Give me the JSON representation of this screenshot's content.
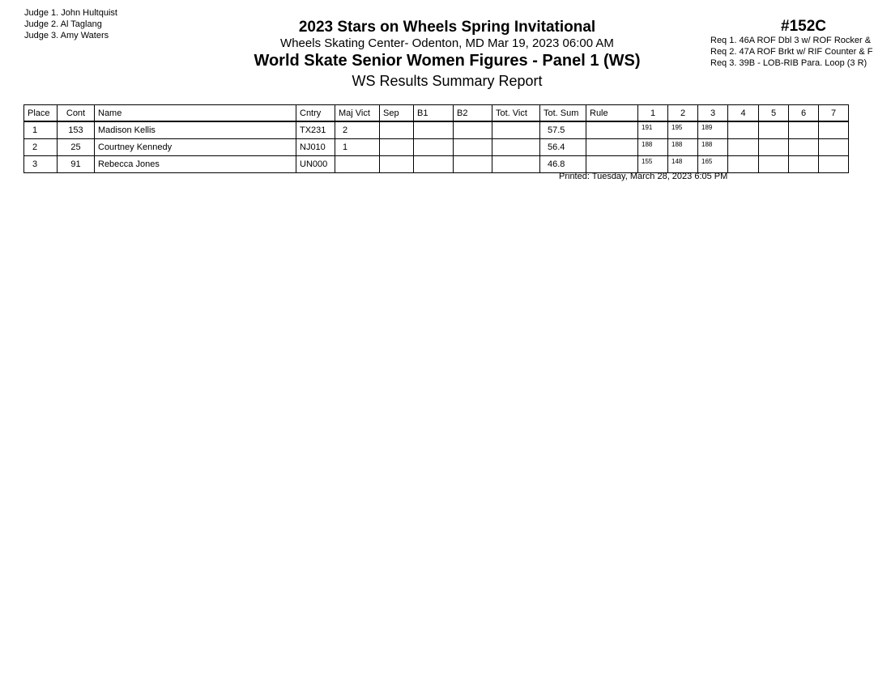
{
  "judges": [
    "Judge  1.  John Hultquist",
    "Judge  2.  Al Taglang",
    "Judge  3.  Amy Waters"
  ],
  "header": {
    "title": "2023 Stars on Wheels Spring Invitational",
    "venue": "Wheels Skating Center- Odenton, MD  Mar 19, 2023  06:00 AM",
    "event": "World Skate Senior Women Figures - Panel 1 (WS)",
    "report": "WS Results Summary Report",
    "event_number": "#152C"
  },
  "requirements": [
    "Req  1.  46A ROF Dbl 3 w/ ROF Rocker &",
    "Req  2.  47A ROF Brkt w/ RIF Counter & F",
    "Req  3.  39B - LOB-RIB Para. Loop (3 R)"
  ],
  "table": {
    "columns": [
      "Place",
      "Cont",
      "Name",
      "Cntry",
      "Maj Vict",
      "Sep",
      "B1",
      "B2",
      "Tot. Vict",
      "Tot. Sum",
      "Rule",
      "1",
      "2",
      "3",
      "4",
      "5",
      "6",
      "7"
    ],
    "rows": [
      [
        "1",
        "153",
        "Madison Kellis",
        "TX231",
        "2",
        "",
        "",
        "",
        "",
        "57.5",
        "",
        "191",
        "195",
        "189",
        "",
        "",
        "",
        ""
      ],
      [
        "2",
        "25",
        "Courtney Kennedy",
        "NJ010",
        "1",
        "",
        "",
        "",
        "",
        "56.4",
        "",
        "188",
        "188",
        "188",
        "",
        "",
        "",
        ""
      ],
      [
        "3",
        "91",
        "Rebecca Jones",
        "UN000",
        "",
        "",
        "",
        "",
        "",
        "46.8",
        "",
        "155",
        "148",
        "165",
        "",
        "",
        "",
        ""
      ]
    ]
  },
  "printed": "Printed:  Tuesday, March 28, 2023  6:05 PM"
}
